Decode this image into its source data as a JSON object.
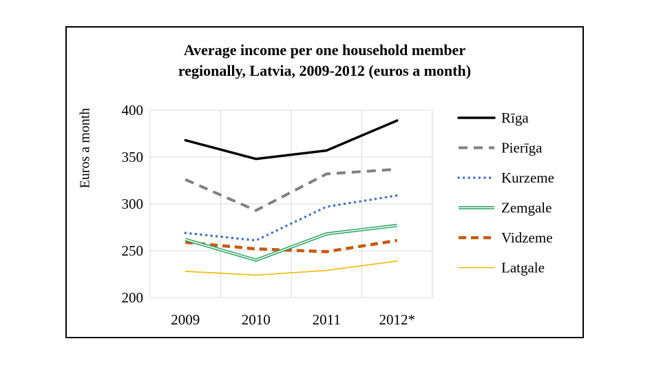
{
  "chart_data": {
    "type": "line",
    "title_lines": [
      "Average income per one household member",
      "regionally, Latvia, 2009-2012 (euros a month)"
    ],
    "xlabel": "",
    "ylabel": "Euros a month",
    "categories": [
      "2009",
      "2010",
      "2011",
      "2012*"
    ],
    "ylim": [
      200,
      400
    ],
    "yticks": [
      "200",
      "250",
      "300",
      "350",
      "400"
    ],
    "grid": true,
    "legend_position": "right",
    "series": [
      {
        "name": "Rīga",
        "values": [
          368,
          348,
          357,
          389
        ],
        "color": "#000000",
        "style": "solid-thick"
      },
      {
        "name": "Pierīga",
        "values": [
          326,
          293,
          332,
          337
        ],
        "color": "#808080",
        "style": "dashed"
      },
      {
        "name": "Kurzeme",
        "values": [
          269,
          261,
          297,
          309
        ],
        "color": "#4472c4",
        "style": "dotted"
      },
      {
        "name": "Zemgale",
        "values": [
          262,
          240,
          268,
          277
        ],
        "color": "#21a05a",
        "style": "double"
      },
      {
        "name": "Vidzeme",
        "values": [
          259,
          252,
          249,
          261
        ],
        "color": "#c55a11",
        "style": "dashed-thick"
      },
      {
        "name": "Latgale",
        "values": [
          228,
          224,
          229,
          239
        ],
        "color": "#f0b800",
        "style": "solid-thin"
      }
    ]
  }
}
